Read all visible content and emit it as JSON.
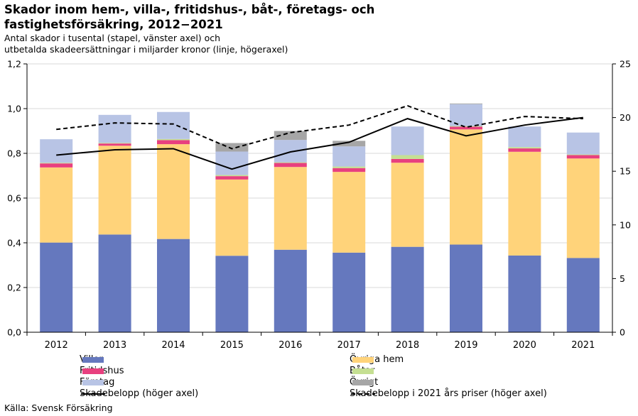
{
  "title": "Skador inom hem-, villa-, fritidshus-, båt-, företags- och fastighetsförsäkring, 2012−2021",
  "subtitle_lines": [
    "Antal skador i tusental (stapel, vänster axel) och",
    "utbetalda skadeersättningar i miljarder kronor (linje, högeraxel)"
  ],
  "source": "Källa: Svensk Försäkring",
  "chart_data": {
    "type": "bar",
    "categories": [
      "2012",
      "2013",
      "2014",
      "2015",
      "2016",
      "2017",
      "2018",
      "2019",
      "2020",
      "2021"
    ],
    "stacked": true,
    "y_left": {
      "ylim": [
        0,
        1.2
      ],
      "ticks": [
        "0,0",
        "0,2",
        "0,4",
        "0,6",
        "0,8",
        "1,0",
        "1,2"
      ]
    },
    "y_right": {
      "ylim": [
        0,
        25
      ],
      "ticks": [
        "0",
        "5",
        "10",
        "15",
        "20",
        "25"
      ]
    },
    "series": [
      {
        "name": "Villor",
        "kind": "bar",
        "color": "#6578be",
        "values": [
          0.401,
          0.437,
          0.417,
          0.342,
          0.369,
          0.356,
          0.382,
          0.392,
          0.343,
          0.332
        ]
      },
      {
        "name": "Övriga hem",
        "kind": "bar",
        "color": "#ffd37a",
        "values": [
          0.336,
          0.397,
          0.424,
          0.341,
          0.37,
          0.361,
          0.376,
          0.515,
          0.464,
          0.445
        ]
      },
      {
        "name": "Fritidshus",
        "kind": "bar",
        "color": "#e8407f",
        "values": [
          0.018,
          0.01,
          0.018,
          0.015,
          0.018,
          0.017,
          0.017,
          0.012,
          0.015,
          0.015
        ]
      },
      {
        "name": "Båtar",
        "kind": "bar",
        "color": "#c5df92",
        "values": [
          0.003,
          0.003,
          0.005,
          0.005,
          0.003,
          0.007,
          0.017,
          0.003,
          0.006,
          0.003
        ]
      },
      {
        "name": "Företag",
        "kind": "bar",
        "color": "#b8c4e5",
        "values": [
          0.105,
          0.125,
          0.121,
          0.105,
          0.1,
          0.09,
          0.128,
          0.098,
          0.092,
          0.098
        ]
      },
      {
        "name": "Övrigt",
        "kind": "bar",
        "color": "#a6a6a6",
        "values": [
          0.0,
          0.0,
          0.0,
          0.038,
          0.04,
          0.025,
          0.0,
          0.003,
          0.0,
          0.0
        ]
      },
      {
        "name": "Skadebelopp (höger axel)",
        "kind": "line",
        "axis": "right",
        "style": "solid",
        "color": "#000000",
        "values": [
          16.5,
          17.0,
          17.1,
          15.2,
          16.8,
          17.7,
          19.9,
          18.3,
          19.3,
          20.0
        ]
      },
      {
        "name": "Skadebelopp i 2021 års priser (höger axel)",
        "kind": "line",
        "axis": "right",
        "style": "dashed",
        "color": "#000000",
        "values": [
          18.9,
          19.5,
          19.4,
          17.1,
          18.6,
          19.3,
          21.1,
          19.1,
          20.1,
          19.9
        ]
      }
    ],
    "legend": {
      "placement": "bottom",
      "items": [
        {
          "label": "Villor",
          "swatch": "bar",
          "color": "#6578be"
        },
        {
          "label": "Övriga hem",
          "swatch": "bar",
          "color": "#ffd37a"
        },
        {
          "label": "Fritidshus",
          "swatch": "bar",
          "color": "#e8407f"
        },
        {
          "label": "Båtar",
          "swatch": "bar",
          "color": "#c5df92"
        },
        {
          "label": "Företag",
          "swatch": "bar",
          "color": "#b8c4e5"
        },
        {
          "label": "Övrigt",
          "swatch": "bar",
          "color": "#a6a6a6"
        },
        {
          "label": "Skadebelopp (höger axel)",
          "swatch": "line-solid",
          "color": "#000000"
        },
        {
          "label": "Skadebelopp i 2021 års priser (höger axel)",
          "swatch": "line-dashed",
          "color": "#000000"
        }
      ]
    },
    "grid": "horizontal"
  }
}
